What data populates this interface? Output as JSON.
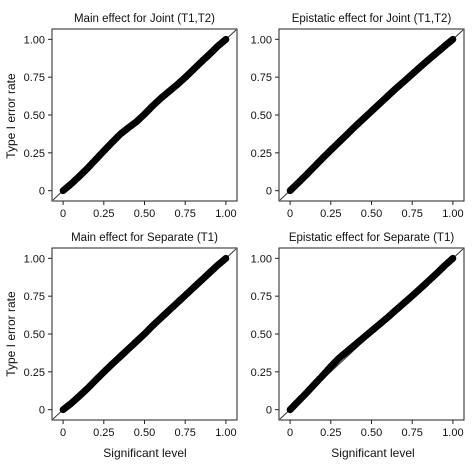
{
  "figure": {
    "ylabel": "Type I error rate",
    "xlabel": "Significant level"
  },
  "chart_data": [
    {
      "type": "scatter",
      "title": "Main effect for Joint (T1,T2)",
      "xlabel": "",
      "ylabel": "Type I error rate",
      "xlim": [
        0,
        1
      ],
      "ylim": [
        0,
        1
      ],
      "xticks": [
        "0",
        "0.25",
        "0.50",
        "0.75",
        "1.00"
      ],
      "yticks": [
        "0",
        "0.25",
        "0.50",
        "0.75",
        "1.00"
      ],
      "reference_line": "y = x",
      "grid": false,
      "series": [
        {
          "x": [
            0,
            0.05,
            0.1,
            0.15,
            0.2,
            0.25,
            0.3,
            0.35,
            0.4,
            0.45,
            0.5,
            0.55,
            0.6,
            0.65,
            0.7,
            0.75,
            0.8,
            0.85,
            0.9,
            0.95,
            1
          ],
          "y": [
            0,
            0.045,
            0.095,
            0.148,
            0.205,
            0.262,
            0.318,
            0.372,
            0.415,
            0.455,
            0.505,
            0.56,
            0.61,
            0.655,
            0.7,
            0.748,
            0.8,
            0.852,
            0.902,
            0.955,
            1
          ]
        }
      ]
    },
    {
      "type": "scatter",
      "title": "Epistatic effect for Joint (T1,T2)",
      "xlabel": "",
      "ylabel": "",
      "xlim": [
        0,
        1
      ],
      "ylim": [
        0,
        1
      ],
      "xticks": [
        "0",
        "0.25",
        "0.50",
        "0.75",
        "1.00"
      ],
      "yticks": [
        "0",
        "0.25",
        "0.50",
        "0.75",
        "1.00"
      ],
      "reference_line": "y = x",
      "grid": false,
      "series": [
        {
          "x": [
            0,
            0.05,
            0.1,
            0.15,
            0.2,
            0.25,
            0.3,
            0.35,
            0.4,
            0.45,
            0.5,
            0.55,
            0.6,
            0.65,
            0.7,
            0.75,
            0.8,
            0.85,
            0.9,
            0.95,
            1
          ],
          "y": [
            0,
            0.052,
            0.105,
            0.16,
            0.215,
            0.268,
            0.32,
            0.372,
            0.425,
            0.475,
            0.525,
            0.575,
            0.625,
            0.675,
            0.722,
            0.77,
            0.818,
            0.865,
            0.91,
            0.956,
            1
          ]
        }
      ]
    },
    {
      "type": "scatter",
      "title": "Main effect for Separate (T1)",
      "xlabel": "Significant level",
      "ylabel": "Type I error rate",
      "xlim": [
        0,
        1
      ],
      "ylim": [
        0,
        1
      ],
      "xticks": [
        "0",
        "0.25",
        "0.50",
        "0.75",
        "1.00"
      ],
      "yticks": [
        "0",
        "0.25",
        "0.50",
        "0.75",
        "1.00"
      ],
      "reference_line": "y = x",
      "grid": false,
      "series": [
        {
          "x": [
            0,
            0.05,
            0.1,
            0.15,
            0.2,
            0.25,
            0.3,
            0.35,
            0.4,
            0.45,
            0.5,
            0.55,
            0.6,
            0.65,
            0.7,
            0.75,
            0.8,
            0.85,
            0.9,
            0.95,
            1
          ],
          "y": [
            0,
            0.042,
            0.09,
            0.14,
            0.195,
            0.248,
            0.3,
            0.35,
            0.4,
            0.45,
            0.5,
            0.555,
            0.605,
            0.655,
            0.705,
            0.755,
            0.805,
            0.855,
            0.905,
            0.955,
            1
          ]
        }
      ]
    },
    {
      "type": "scatter",
      "title": "Epistatic effect for Separate (T1)",
      "xlabel": "Significant level",
      "ylabel": "",
      "xlim": [
        0,
        1
      ],
      "ylim": [
        0,
        1
      ],
      "xticks": [
        "0",
        "0.25",
        "0.50",
        "0.75",
        "1.00"
      ],
      "yticks": [
        "0",
        "0.25",
        "0.50",
        "0.75",
        "1.00"
      ],
      "reference_line": "y = x",
      "grid": false,
      "series": [
        {
          "x": [
            0,
            0.05,
            0.1,
            0.15,
            0.2,
            0.25,
            0.3,
            0.35,
            0.4,
            0.45,
            0.5,
            0.55,
            0.6,
            0.65,
            0.7,
            0.75,
            0.8,
            0.85,
            0.9,
            0.95,
            1
          ],
          "y": [
            0,
            0.055,
            0.11,
            0.168,
            0.225,
            0.285,
            0.34,
            0.385,
            0.43,
            0.475,
            0.52,
            0.565,
            0.61,
            0.658,
            0.705,
            0.752,
            0.8,
            0.85,
            0.9,
            0.952,
            1
          ]
        }
      ]
    }
  ]
}
